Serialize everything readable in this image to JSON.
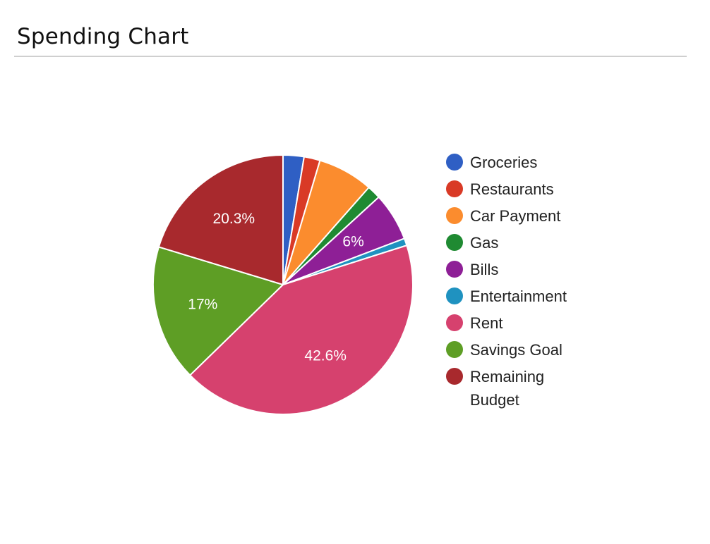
{
  "page": {
    "title": "Spending Chart"
  },
  "chart_data": {
    "type": "pie",
    "title": "",
    "legend_position": "right",
    "categories": [
      "Groceries",
      "Restaurants",
      "Car Payment",
      "Gas",
      "Bills",
      "Entertainment",
      "Rent",
      "Savings Goal",
      "Remaining Budget"
    ],
    "values": [
      2.6,
      2.0,
      6.9,
      1.7,
      6.0,
      0.9,
      42.6,
      17.0,
      20.3
    ],
    "colors": [
      "#2f5fc4",
      "#d93a26",
      "#fb8c2e",
      "#1f8a32",
      "#8e1f96",
      "#1f92c0",
      "#d6416e",
      "#5e9e25",
      "#a8292d"
    ],
    "data_labels": [
      "",
      "",
      "",
      "",
      "6%",
      "",
      "42.6%",
      "17%",
      "20.3%"
    ],
    "legend_lines": [
      [
        "Groceries"
      ],
      [
        "Restaurants"
      ],
      [
        "Car Payment"
      ],
      [
        "Gas"
      ],
      [
        "Bills"
      ],
      [
        "Entertainment"
      ],
      [
        "Rent"
      ],
      [
        "Savings Goal"
      ],
      [
        "Remaining",
        "Budget"
      ]
    ]
  }
}
